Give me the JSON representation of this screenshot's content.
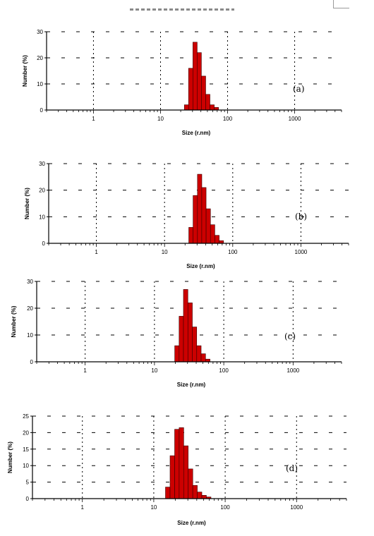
{
  "chart_data": [
    {
      "type": "bar",
      "panel_label": "(a)",
      "xlabel": "Size (r.nm)",
      "ylabel": "Number (%)",
      "xscale": "log",
      "xlim": [
        0.2,
        5000
      ],
      "ylim": [
        0,
        30
      ],
      "yticks": [
        "0",
        "10",
        "20",
        "30"
      ],
      "xticks": [
        "1",
        "10",
        "100",
        "1000"
      ],
      "grid": "dashed",
      "bins": [
        {
          "x": 24.4,
          "y": 2.0
        },
        {
          "x": 28.2,
          "y": 16.0
        },
        {
          "x": 32.7,
          "y": 26.0
        },
        {
          "x": 37.8,
          "y": 22.0
        },
        {
          "x": 43.8,
          "y": 13.0
        },
        {
          "x": 50.7,
          "y": 6.0
        },
        {
          "x": 58.8,
          "y": 2.0
        },
        {
          "x": 68.1,
          "y": 1.0
        }
      ]
    },
    {
      "type": "bar",
      "panel_label": "(b)",
      "xlabel": "Size (r.nm)",
      "ylabel": "Number (%)",
      "xscale": "log",
      "xlim": [
        0.2,
        5000
      ],
      "ylim": [
        0,
        30
      ],
      "yticks": [
        "0",
        "10",
        "20",
        "30"
      ],
      "xticks": [
        "1",
        "10",
        "100",
        "1000"
      ],
      "grid": "dashed",
      "bins": [
        {
          "x": 24.4,
          "y": 6.0
        },
        {
          "x": 28.2,
          "y": 18.0
        },
        {
          "x": 32.7,
          "y": 26.0
        },
        {
          "x": 37.8,
          "y": 21.0
        },
        {
          "x": 43.8,
          "y": 13.0
        },
        {
          "x": 50.7,
          "y": 7.0
        },
        {
          "x": 58.8,
          "y": 3.0
        },
        {
          "x": 68.1,
          "y": 1.0
        }
      ]
    },
    {
      "type": "bar",
      "panel_label": "(c)",
      "xlabel": "Size (r.nm)",
      "ylabel": "Number (%)",
      "xscale": "log",
      "xlim": [
        0.2,
        5000
      ],
      "ylim": [
        0,
        30
      ],
      "yticks": [
        "0",
        "10",
        "20",
        "30"
      ],
      "xticks": [
        "1",
        "10",
        "100",
        "1000"
      ],
      "grid": "dashed",
      "bins": [
        {
          "x": 21.1,
          "y": 6.0
        },
        {
          "x": 24.4,
          "y": 17.0
        },
        {
          "x": 28.2,
          "y": 27.0
        },
        {
          "x": 32.7,
          "y": 22.0
        },
        {
          "x": 37.8,
          "y": 13.0
        },
        {
          "x": 43.8,
          "y": 6.0
        },
        {
          "x": 50.7,
          "y": 3.0
        },
        {
          "x": 58.8,
          "y": 1.0
        }
      ]
    },
    {
      "type": "bar",
      "panel_label": "(d)",
      "xlabel": "Size (r.nm)",
      "ylabel": "Number (%)",
      "xscale": "log",
      "xlim": [
        0.2,
        5000
      ],
      "ylim": [
        0,
        25
      ],
      "yticks": [
        "0",
        "5",
        "10",
        "15",
        "20",
        "25"
      ],
      "xticks": [
        "1",
        "10",
        "100",
        "1000"
      ],
      "grid": "dashed",
      "bins": [
        {
          "x": 15.7,
          "y": 3.5
        },
        {
          "x": 18.2,
          "y": 13.0
        },
        {
          "x": 21.1,
          "y": 21.0
        },
        {
          "x": 24.4,
          "y": 21.5
        },
        {
          "x": 28.2,
          "y": 16.0
        },
        {
          "x": 32.7,
          "y": 9.0
        },
        {
          "x": 37.8,
          "y": 4.0
        },
        {
          "x": 43.8,
          "y": 2.0
        },
        {
          "x": 50.7,
          "y": 1.0
        },
        {
          "x": 58.8,
          "y": 0.5
        }
      ]
    }
  ],
  "colors": {
    "bar_fill": "#cc0000",
    "bar_stroke": "#3a0000",
    "axis": "#000000",
    "grid": "#000000"
  }
}
